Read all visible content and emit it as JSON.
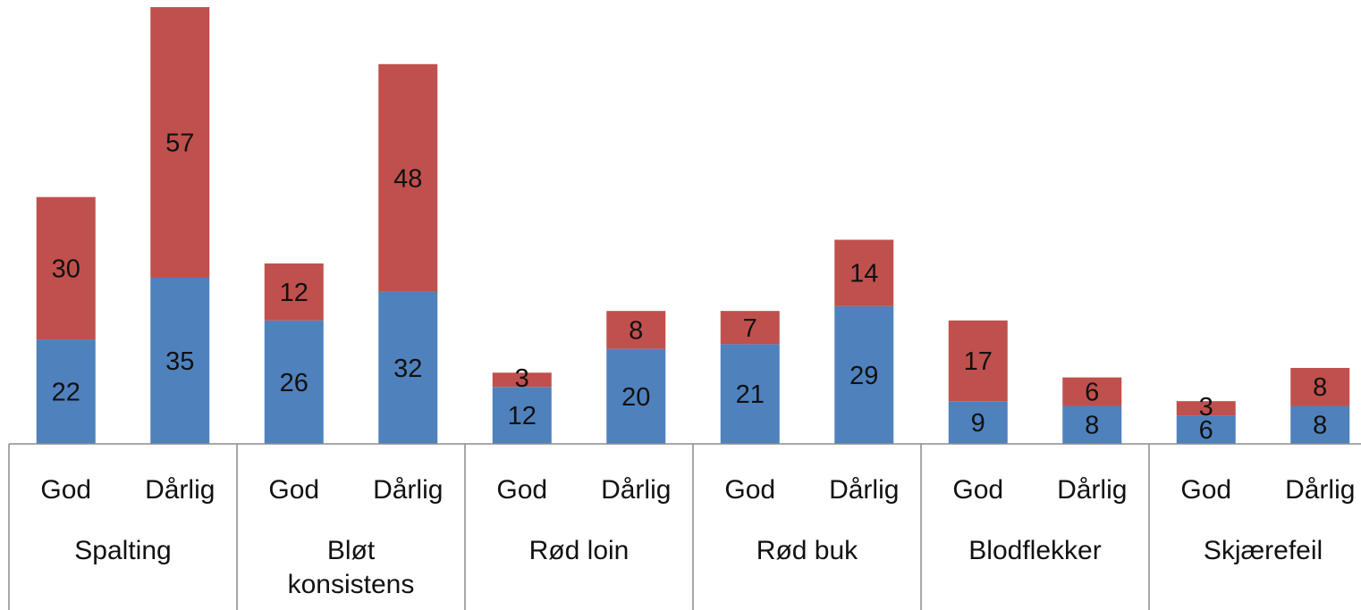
{
  "chart_data": {
    "type": "bar",
    "stacked": true,
    "groups": [
      {
        "label_lines": [
          "Spalting"
        ],
        "categories": [
          "God",
          "Dårlig"
        ]
      },
      {
        "label_lines": [
          "Bløt",
          "konsistens"
        ],
        "categories": [
          "God",
          "Dårlig"
        ]
      },
      {
        "label_lines": [
          "Rød loin"
        ],
        "categories": [
          "God",
          "Dårlig"
        ]
      },
      {
        "label_lines": [
          "Rød buk"
        ],
        "categories": [
          "God",
          "Dårlig"
        ]
      },
      {
        "label_lines": [
          "Blodflekker"
        ],
        "categories": [
          "God",
          "Dårlig"
        ]
      },
      {
        "label_lines": [
          "Skjærefeil"
        ],
        "categories": [
          "God",
          "Dårlig"
        ]
      }
    ],
    "series": [
      {
        "color": "#4f81bd",
        "values": [
          22,
          35,
          26,
          32,
          12,
          20,
          21,
          29,
          9,
          8,
          6,
          8
        ]
      },
      {
        "color": "#c0504d",
        "values": [
          30,
          57,
          12,
          48,
          3,
          8,
          7,
          14,
          17,
          6,
          3,
          8
        ]
      }
    ],
    "title": "",
    "xlabel": "",
    "ylabel": "",
    "ylim": [
      0,
      92
    ],
    "grid": false,
    "legend": "none"
  }
}
